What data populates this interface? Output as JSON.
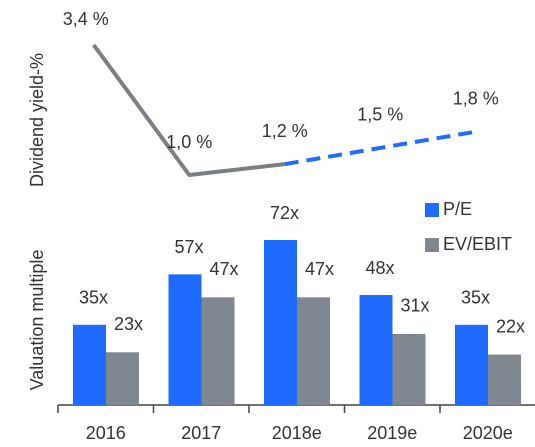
{
  "chart_data": [
    {
      "type": "line",
      "y_label": "Dividend yield-%",
      "categories": [
        "2016",
        "2017",
        "2018e",
        "2019e",
        "2020e"
      ],
      "values": [
        3.4,
        1.0,
        1.2,
        1.5,
        1.8
      ],
      "value_labels": [
        "3,4 %",
        "1,0 %",
        "1,2 %",
        "1,5 %",
        "1,8 %"
      ],
      "color": "#7a7f86",
      "dash_color": "#1f6bff",
      "dash_from": 2
    },
    {
      "type": "bar",
      "y_label": "Valuation multiple",
      "categories": [
        "2016",
        "2017",
        "2018e",
        "2019e",
        "2020e"
      ],
      "series": [
        {
          "name": "P/E",
          "color": "#1f6bff",
          "values": [
            35,
            57,
            72,
            48,
            35
          ],
          "value_labels": [
            "35x",
            "57x",
            "72x",
            "48x",
            "35x"
          ]
        },
        {
          "name": "EV/EBIT",
          "color": "#7f8790",
          "values": [
            23,
            47,
            47,
            31,
            22
          ],
          "value_labels": [
            "23x",
            "47x",
            "47x",
            "31x",
            "22x"
          ]
        }
      ],
      "legend": "top-right"
    }
  ]
}
